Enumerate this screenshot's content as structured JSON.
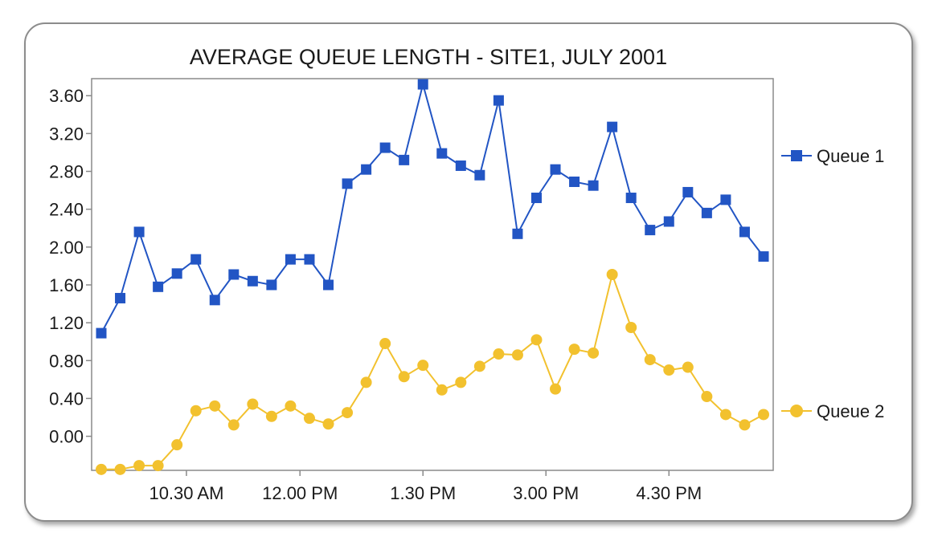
{
  "chart_data": {
    "type": "line",
    "title": "AVERAGE QUEUE LENGTH - SITE1, JULY 2001",
    "xlabel": "",
    "ylabel": "",
    "ylim": [
      -0.36,
      3.78
    ],
    "yticks": [
      0.0,
      0.4,
      0.8,
      1.2,
      1.6,
      2.0,
      2.4,
      2.8,
      3.2,
      3.6
    ],
    "ytick_labels": [
      "0.00",
      "0.40",
      "0.80",
      "1.20",
      "1.60",
      "2.00",
      "2.40",
      "2.80",
      "3.20",
      "3.60"
    ],
    "x_point_count": 36,
    "xtick_indices": [
      4.5,
      10.5,
      17,
      23.5,
      30
    ],
    "xtick_labels": [
      "10.30 AM",
      "12.00 PM",
      "1.30 PM",
      "3.00 PM",
      "4.30 PM"
    ],
    "grid": false,
    "legend": "right",
    "series": [
      {
        "name": "Queue 1",
        "color": "#2255c4",
        "marker": "square",
        "values": [
          1.09,
          1.46,
          2.16,
          1.58,
          1.72,
          1.87,
          1.44,
          1.71,
          1.64,
          1.6,
          1.87,
          1.87,
          1.6,
          2.67,
          2.82,
          3.05,
          2.92,
          3.72,
          2.99,
          2.86,
          2.76,
          3.55,
          2.14,
          2.52,
          2.82,
          2.69,
          2.65,
          3.27,
          2.52,
          2.18,
          2.27,
          2.58,
          2.36,
          2.5,
          2.16,
          1.9
        ]
      },
      {
        "name": "Queue 2",
        "color": "#f2c12e",
        "marker": "circle",
        "values": [
          -0.35,
          -0.35,
          -0.31,
          -0.31,
          -0.09,
          0.27,
          0.32,
          0.12,
          0.34,
          0.21,
          0.32,
          0.19,
          0.13,
          0.25,
          0.57,
          0.98,
          0.63,
          0.75,
          0.49,
          0.57,
          0.74,
          0.87,
          0.86,
          1.02,
          0.5,
          0.92,
          0.88,
          1.71,
          1.15,
          0.81,
          0.7,
          0.73,
          0.42,
          0.23,
          0.12,
          0.23
        ]
      }
    ]
  }
}
